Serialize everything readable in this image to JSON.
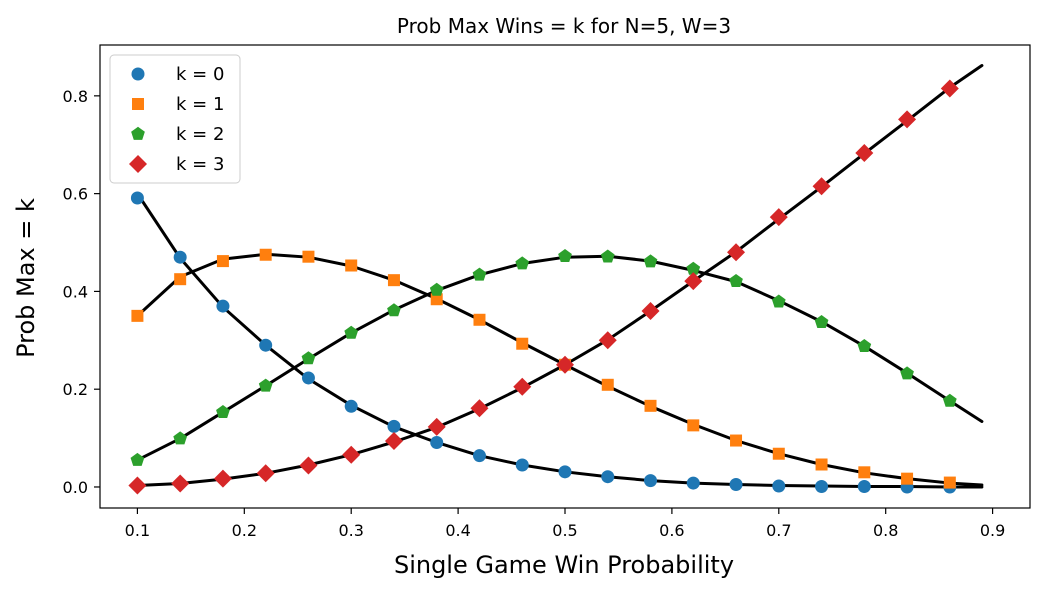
{
  "chart_data": {
    "type": "line",
    "title": "Prob Max Wins = k for N=5, W=3",
    "xlabel": "Single Game Win Probability",
    "ylabel": "Prob Max = k",
    "xlim": [
      0.065,
      0.935
    ],
    "ylim": [
      -0.043,
      0.904
    ],
    "xticks": [
      0.1,
      0.2,
      0.3,
      0.4,
      0.5,
      0.6,
      0.7,
      0.8,
      0.9
    ],
    "yticks": [
      0.0,
      0.2,
      0.4,
      0.6,
      0.8
    ],
    "xtick_labels": [
      "0.1",
      "0.2",
      "0.3",
      "0.4",
      "0.5",
      "0.6",
      "0.7",
      "0.8",
      "0.9"
    ],
    "ytick_labels": [
      "0.0",
      "0.2",
      "0.4",
      "0.6",
      "0.8"
    ],
    "grid": false,
    "legend_position": "top-left",
    "x": [
      0.1,
      0.14,
      0.18,
      0.22,
      0.26,
      0.3,
      0.34,
      0.38,
      0.42,
      0.46,
      0.5,
      0.54,
      0.58,
      0.62,
      0.66,
      0.7,
      0.74,
      0.78,
      0.82,
      0.86
    ],
    "series": [
      {
        "name": "k = 0",
        "marker": "circle",
        "color": "#1f77b4",
        "values": [
          0.591,
          0.47,
          0.37,
          0.29,
          0.223,
          0.165,
          0.124,
          0.091,
          0.064,
          0.045,
          0.031,
          0.021,
          0.013,
          0.008,
          0.005,
          0.002,
          0.001,
          0.001,
          0.0,
          0.0
        ]
      },
      {
        "name": "k = 1",
        "marker": "square",
        "color": "#ff7f0e",
        "values": [
          0.35,
          0.425,
          0.462,
          0.475,
          0.471,
          0.453,
          0.423,
          0.384,
          0.342,
          0.293,
          0.25,
          0.209,
          0.166,
          0.126,
          0.095,
          0.068,
          0.046,
          0.03,
          0.017,
          0.009
        ]
      },
      {
        "name": "k = 2",
        "marker": "pentagon",
        "color": "#2ca02c",
        "values": [
          0.055,
          0.099,
          0.153,
          0.207,
          0.263,
          0.315,
          0.361,
          0.403,
          0.434,
          0.457,
          0.472,
          0.471,
          0.461,
          0.446,
          0.421,
          0.379,
          0.337,
          0.288,
          0.232,
          0.176
        ]
      },
      {
        "name": "k = 3",
        "marker": "diamond",
        "color": "#d62728",
        "values": [
          0.003,
          0.007,
          0.017,
          0.028,
          0.044,
          0.066,
          0.094,
          0.123,
          0.161,
          0.205,
          0.25,
          0.3,
          0.36,
          0.421,
          0.48,
          0.552,
          0.615,
          0.683,
          0.752,
          0.815
        ]
      }
    ],
    "fit_curve_color": "#000000",
    "fit_curve_x_range": [
      0.1,
      0.89
    ],
    "fit_curves": [
      {
        "x": [
          0.1,
          0.14,
          0.18,
          0.22,
          0.26,
          0.3,
          0.34,
          0.38,
          0.42,
          0.46,
          0.5,
          0.54,
          0.58,
          0.62,
          0.66,
          0.7,
          0.74,
          0.78,
          0.82,
          0.86,
          0.89
        ],
        "values": [
          0.6,
          0.468,
          0.368,
          0.29,
          0.221,
          0.167,
          0.123,
          0.091,
          0.064,
          0.045,
          0.031,
          0.021,
          0.013,
          0.008,
          0.005,
          0.003,
          0.002,
          0.001,
          0.001,
          0.0,
          0.0
        ]
      },
      {
        "x": [
          0.1,
          0.14,
          0.18,
          0.22,
          0.26,
          0.3,
          0.34,
          0.38,
          0.42,
          0.46,
          0.5,
          0.54,
          0.58,
          0.62,
          0.66,
          0.7,
          0.74,
          0.78,
          0.82,
          0.86,
          0.89
        ],
        "values": [
          0.35,
          0.43,
          0.466,
          0.476,
          0.47,
          0.452,
          0.423,
          0.385,
          0.342,
          0.295,
          0.25,
          0.206,
          0.165,
          0.128,
          0.095,
          0.068,
          0.046,
          0.029,
          0.017,
          0.008,
          0.004
        ]
      },
      {
        "x": [
          0.1,
          0.14,
          0.18,
          0.22,
          0.26,
          0.3,
          0.34,
          0.38,
          0.42,
          0.46,
          0.5,
          0.54,
          0.58,
          0.62,
          0.66,
          0.7,
          0.74,
          0.78,
          0.82,
          0.86,
          0.89
        ],
        "values": [
          0.055,
          0.099,
          0.153,
          0.207,
          0.262,
          0.315,
          0.362,
          0.402,
          0.434,
          0.457,
          0.47,
          0.472,
          0.462,
          0.443,
          0.42,
          0.381,
          0.338,
          0.288,
          0.233,
          0.176,
          0.134
        ]
      },
      {
        "x": [
          0.1,
          0.14,
          0.18,
          0.22,
          0.26,
          0.3,
          0.34,
          0.38,
          0.42,
          0.46,
          0.5,
          0.54,
          0.58,
          0.62,
          0.66,
          0.7,
          0.74,
          0.78,
          0.82,
          0.86,
          0.89
        ],
        "values": [
          0.003,
          0.007,
          0.016,
          0.028,
          0.045,
          0.066,
          0.092,
          0.122,
          0.16,
          0.203,
          0.25,
          0.301,
          0.36,
          0.421,
          0.481,
          0.548,
          0.614,
          0.682,
          0.749,
          0.817,
          0.862
        ]
      }
    ]
  }
}
